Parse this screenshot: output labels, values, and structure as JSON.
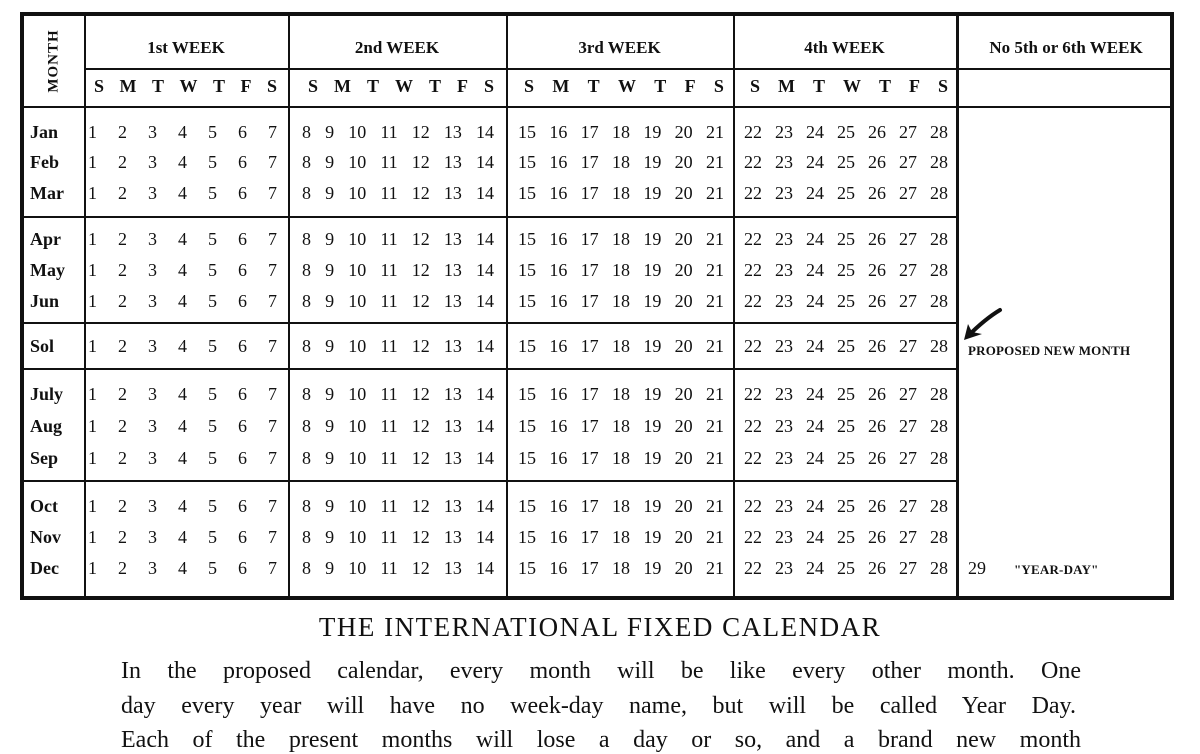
{
  "calendar": {
    "month_header": "MONTH",
    "weeks": [
      {
        "title": "1st WEEK",
        "days": [
          "1",
          "2",
          "3",
          "4",
          "5",
          "6",
          "7"
        ]
      },
      {
        "title": "2nd WEEK",
        "days": [
          "8",
          "9",
          "10",
          "11",
          "12",
          "13",
          "14"
        ]
      },
      {
        "title": "3rd WEEK",
        "days": [
          "15",
          "16",
          "17",
          "18",
          "19",
          "20",
          "21"
        ]
      },
      {
        "title": "4th WEEK",
        "days": [
          "22",
          "23",
          "24",
          "25",
          "26",
          "27",
          "28"
        ]
      }
    ],
    "weekday_letters": [
      "S",
      "M",
      "T",
      "W",
      "T",
      "F",
      "S"
    ],
    "extra_week_title": "No 5th or 6th WEEK",
    "months": [
      "Jan",
      "Feb",
      "Mar",
      "Apr",
      "May",
      "Jun",
      "Sol",
      "July",
      "Aug",
      "Sep",
      "Oct",
      "Nov",
      "Dec"
    ],
    "new_month_note": "PROPOSED NEW MONTH",
    "arrow_icon": "arrow-icon",
    "year_day_number": "29",
    "year_day_label": "\"YEAR-DAY\""
  },
  "caption": "THE INTERNATIONAL FIXED CALENDAR",
  "paragraph_lines": [
    "In the proposed calendar, every month will be like every other month.   One",
    "day every year will have no week-day name, but will be called Year Day.",
    "Each of the present months will lose a day or so, and a brand new month"
  ]
}
